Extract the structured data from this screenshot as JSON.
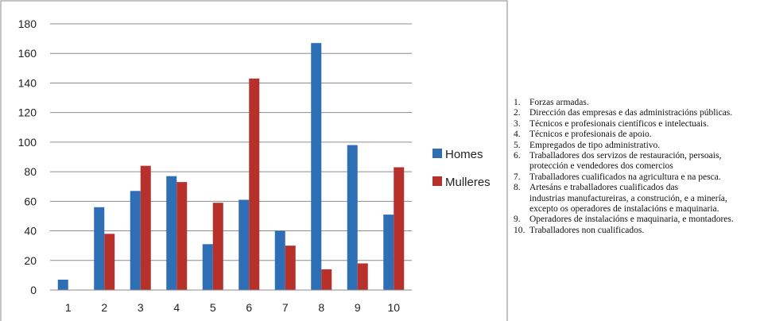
{
  "chart_data": {
    "type": "bar",
    "categories": [
      "1",
      "2",
      "3",
      "4",
      "5",
      "6",
      "7",
      "8",
      "9",
      "10"
    ],
    "series": [
      {
        "name": "Homes",
        "color": "#2E6EB5",
        "values": [
          7,
          56,
          67,
          77,
          31,
          61,
          40,
          167,
          98,
          51
        ]
      },
      {
        "name": "Mulleres",
        "color": "#B7312C",
        "values": [
          0,
          38,
          84,
          73,
          59,
          143,
          30,
          14,
          18,
          83
        ]
      }
    ],
    "y_ticks": [
      0,
      20,
      40,
      60,
      80,
      100,
      120,
      140,
      160,
      180
    ],
    "ylim": [
      0,
      180
    ],
    "grid": true,
    "legend_position": "right"
  },
  "notes": [
    {
      "num": "1.",
      "lines": [
        "Forzas armadas."
      ]
    },
    {
      "num": "2.",
      "lines": [
        "Dirección das empresas e das administracións públicas."
      ]
    },
    {
      "num": "3.",
      "lines": [
        "Técnicos e profesionais científicos e intelectuais."
      ]
    },
    {
      "num": "4.",
      "lines": [
        "Técnicos e profesionais de apoio."
      ]
    },
    {
      "num": "5.",
      "lines": [
        "Empregados de tipo administrativo."
      ]
    },
    {
      "num": "6.",
      "lines": [
        "Traballadores dos servizos de restauración, persoais,",
        "protección e vendedores dos comercios"
      ]
    },
    {
      "num": "7.",
      "lines": [
        "Traballadores cualificados na agricultura e na pesca."
      ]
    },
    {
      "num": "8.",
      "lines": [
        "Artesáns e traballadores cualificados das",
        "industrias manufactureiras, a construción, e a minería,",
        "excepto os operadores de instalacións e maquinaria."
      ]
    },
    {
      "num": "9.",
      "lines": [
        "Operadores de instalacións e maquinaria, e montadores."
      ]
    },
    {
      "num": "10.",
      "lines": [
        "Traballadores non cualificados."
      ]
    }
  ]
}
